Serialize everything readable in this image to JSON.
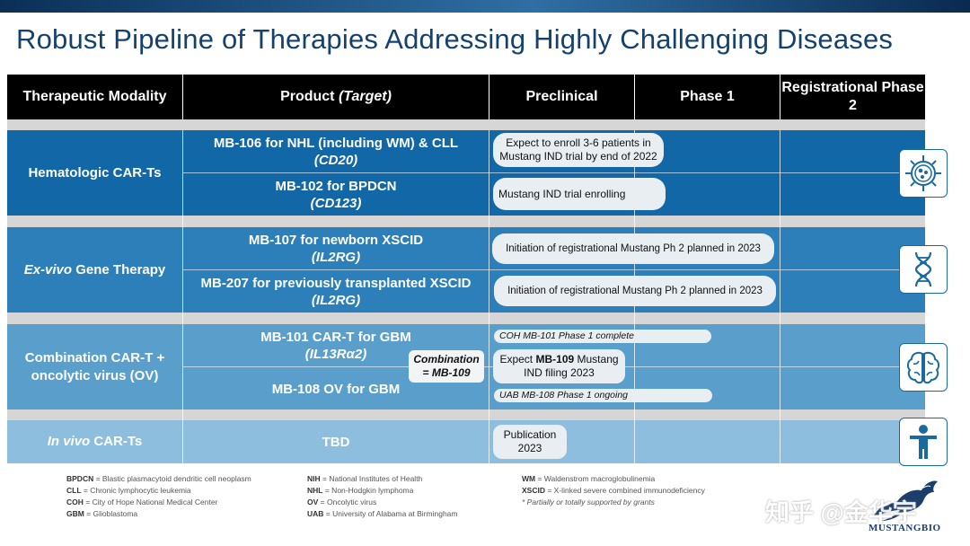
{
  "title": "Robust Pipeline of Therapies Addressing Highly Challenging Diseases",
  "colors": {
    "hematologic": "#1267a6",
    "exvivo": "#2c7fb8",
    "combination": "#5a9fcb",
    "invivo": "#8ebedd",
    "header": "#000000"
  },
  "headers": {
    "modality": "Therapeutic Modality",
    "product": "Product",
    "product_target": "(Target)",
    "preclinical": "Preclinical",
    "phase1": "Phase 1",
    "registrational": "Registrational Phase 2"
  },
  "groups": {
    "hematologic": {
      "label": "Hematologic CAR-Ts",
      "icon": "cell-icon",
      "products": [
        {
          "name": "MB-106 for NHL (including WM) & CLL",
          "target": "(CD20)",
          "status": "Expect to enroll 3-6 patients in Mustang IND trial by end of 2022"
        },
        {
          "name": "MB-102 for BPDCN",
          "target": "(CD123)",
          "status": "Mustang IND trial enrolling"
        }
      ]
    },
    "exvivo": {
      "label_italic": "Ex-vivo",
      "label_rest": "Gene Therapy",
      "icon": "dna-icon",
      "products": [
        {
          "name": "MB-107 for newborn XSCID",
          "target": "(IL2RG)",
          "status": "Initiation of registrational Mustang Ph 2 planned in 2023"
        },
        {
          "name": "MB-207 for previously transplanted XSCID",
          "target": "(IL2RG)",
          "status": "Initiation of registrational Mustang Ph 2 planned in 2023"
        }
      ]
    },
    "combination": {
      "label": "Combination CAR-T + oncolytic virus (OV)",
      "icon": "brain-icon",
      "combo_line1": "Combination",
      "combo_line2": "= MB-109",
      "status_expect_prefix": "Expect",
      "status_expect_bold": "MB-109",
      "status_expect_suffix": "Mustang IND filing 2023",
      "products": [
        {
          "name": "MB-101 CAR-T for GBM",
          "target": "(IL13Rα2)",
          "status": "COH MB-101 Phase 1 complete"
        },
        {
          "name": "MB-108 OV for GBM",
          "status": "UAB MB-108 Phase 1 ongoing"
        }
      ]
    },
    "invivo": {
      "label_italic": "In vivo",
      "label_rest": "CAR-Ts",
      "icon": "person-icon",
      "products": [
        {
          "name": "TBD",
          "status": "Publication 2023"
        }
      ]
    }
  },
  "footnotes": {
    "col1": [
      {
        "abbr": "BPDCN",
        "def": "= Blastic plasmacytoid dendritic cell neoplasm"
      },
      {
        "abbr": "CLL",
        "def": "= Chronic lymphocytic leukemia"
      },
      {
        "abbr": "COH",
        "def": "= City of Hope National Medical Center"
      },
      {
        "abbr": "GBM",
        "def": "= Glioblastoma"
      }
    ],
    "col2": [
      {
        "abbr": "NIH",
        "def": "= National Institutes of Health"
      },
      {
        "abbr": "NHL",
        "def": "= Non-Hodgkin lymphoma"
      },
      {
        "abbr": "OV",
        "def": "= Oncolytic virus"
      },
      {
        "abbr": "UAB",
        "def": "= University of Alabama at Birmingham"
      }
    ],
    "col3": [
      {
        "abbr": "WM",
        "def": "= Waldenstrom macroglobulinemia"
      },
      {
        "abbr": "XSCID",
        "def": "= X-linked severe combined immunodeficiency"
      }
    ],
    "note": "* Partially or totally supported by grants"
  },
  "watermark": "知乎 @金华宇",
  "logo_text": "MUSTANGBIO"
}
